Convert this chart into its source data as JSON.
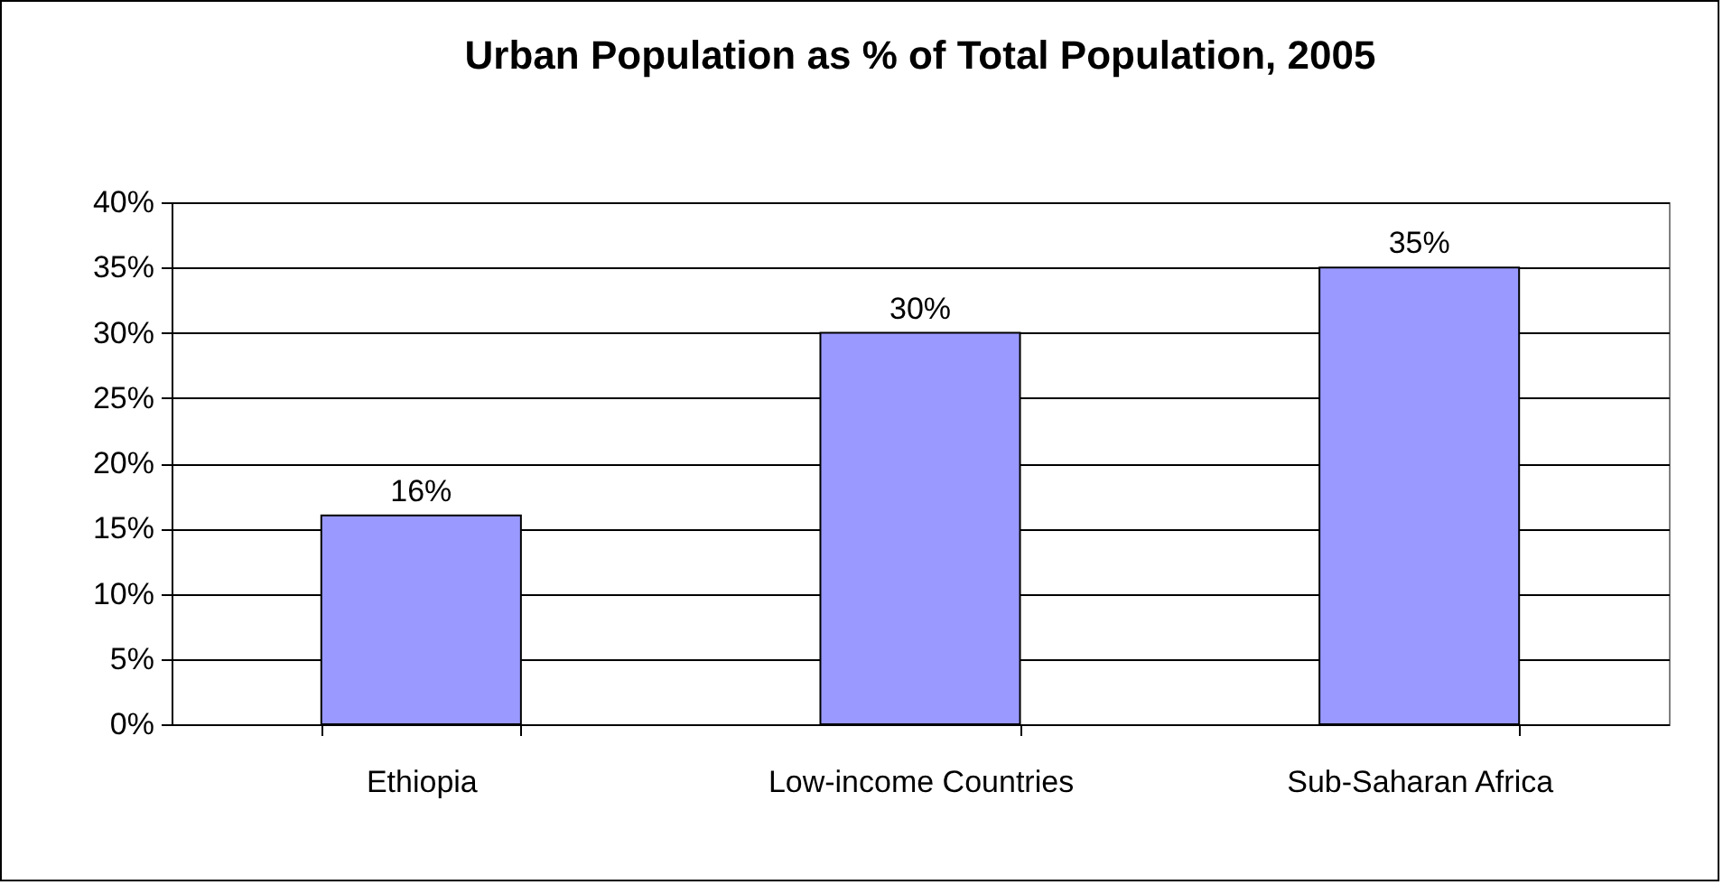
{
  "chart_data": {
    "type": "bar",
    "title": "Urban Population as % of Total Population, 2005",
    "categories": [
      "Ethiopia",
      "Low-income Countries",
      "Sub-Saharan Africa"
    ],
    "values": [
      16,
      30,
      35
    ],
    "color": "#9999ff",
    "value_labels": [
      "16%",
      "30%",
      "35%"
    ],
    "ylim": [
      0,
      40
    ],
    "yticks": [
      {
        "value": 0,
        "label": "0%"
      },
      {
        "value": 5,
        "label": "5%"
      },
      {
        "value": 10,
        "label": "10%"
      },
      {
        "value": 15,
        "label": "15%"
      },
      {
        "value": 20,
        "label": "20%"
      },
      {
        "value": 25,
        "label": "25%"
      },
      {
        "value": 30,
        "label": "30%"
      },
      {
        "value": 35,
        "label": "35%"
      },
      {
        "value": 40,
        "label": "40%"
      }
    ],
    "grid": "y"
  }
}
